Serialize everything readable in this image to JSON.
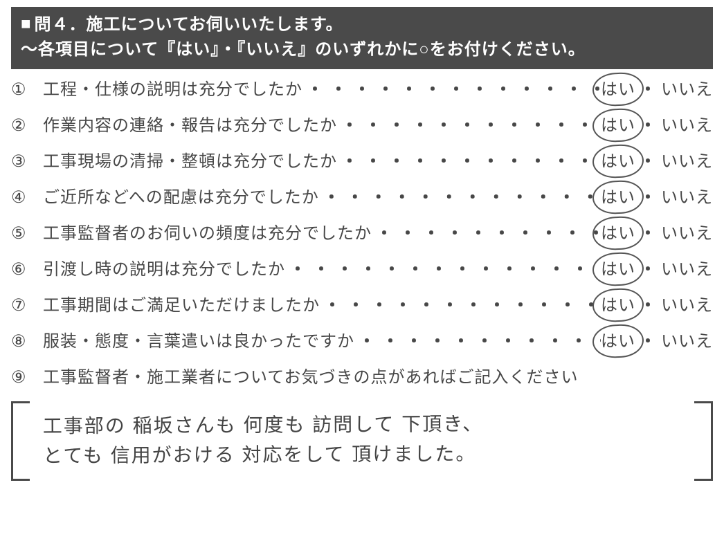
{
  "header": {
    "marker": "■",
    "title_line1": "問４．施工についてお伺いいたします。",
    "title_line2": "〜各項目について『はい』・『いいえ』のいずれかに○をお付けください。"
  },
  "option_labels": {
    "yes": "はい",
    "no": "いいえ",
    "sep": "・"
  },
  "questions": [
    {
      "num": "①",
      "text": "工程・仕様の説明は充分でしたか",
      "selected": "yes"
    },
    {
      "num": "②",
      "text": "作業内容の連絡・報告は充分でしたか",
      "selected": "yes"
    },
    {
      "num": "③",
      "text": "工事現場の清掃・整頓は充分でしたか",
      "selected": "yes"
    },
    {
      "num": "④",
      "text": "ご近所などへの配慮は充分でしたか",
      "selected": "yes"
    },
    {
      "num": "⑤",
      "text": "工事監督者のお伺いの頻度は充分でしたか",
      "selected": "yes"
    },
    {
      "num": "⑥",
      "text": "引渡し時の説明は充分でしたか",
      "selected": "yes"
    },
    {
      "num": "⑦",
      "text": "工事期間はご満足いただけましたか",
      "selected": "yes"
    },
    {
      "num": "⑧",
      "text": "服装・態度・言葉遣いは良かったですか",
      "selected": "yes"
    }
  ],
  "q9": {
    "num": "⑨",
    "text": "工事監督者・施工業者についてお気づきの点があればご記入ください"
  },
  "freeform_answer": {
    "line1": "工事部の 稲坂さんも 何度も 訪問して 下頂き、",
    "line2": "とても 信用がおける 対応をして 頂けました。"
  },
  "dots": "・・・・・・・・・・・・・・・・・・・・",
  "colors": {
    "header_bg": "#4a4a4a",
    "header_fg": "#ffffff",
    "text": "#474747",
    "circle": "#555555",
    "background": "#ffffff"
  }
}
